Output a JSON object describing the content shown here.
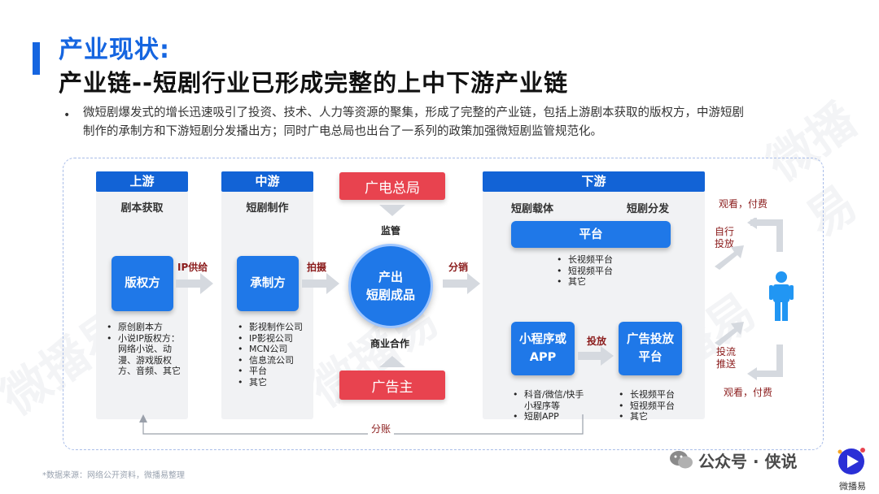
{
  "header": {
    "title_line1": "产业现状:",
    "title_line2": "产业链--短剧行业已形成完整的上中下游产业链"
  },
  "intro": {
    "text": "微短剧爆发式的增长迅速吸引了投资、技术、人力等资源的聚集，形成了完整的产业链，包括上游剧本获取的版权方，中游短剧制作的承制方和下游短剧分发播出方；同时广电总局也出台了一系列的政策加强微短剧监管规范化。"
  },
  "upstream": {
    "header": "上游",
    "subtitle": "剧本获取",
    "box": "版权方",
    "items": [
      "原创剧本方",
      "小说IP版权方：网络小说、动漫、游戏版权方、音频、其它"
    ]
  },
  "midstream": {
    "header": "中游",
    "subtitle": "短剧制作",
    "box": "承制方",
    "items": [
      "影视制作公司",
      "IP影视公司",
      "MCN公司",
      "信息流公司",
      "平台",
      "其它"
    ]
  },
  "center": {
    "regulator": "广电总局",
    "regulate_label": "监管",
    "circle_line1": "产出",
    "circle_line2": "短剧成品",
    "coop_label": "商业合作",
    "advertiser": "广告主"
  },
  "downstream": {
    "header": "下游",
    "sub_left": "短剧载体",
    "sub_right": "短剧分发",
    "platform": "平台",
    "platform_items": [
      "长视频平台",
      "短视频平台",
      "其它"
    ],
    "miniapp_line1": "小程序或",
    "miniapp_line2": "APP",
    "miniapp_items": [
      "科音/微信/快手小程序等",
      "短剧APP"
    ],
    "ad_line1": "广告投放",
    "ad_line2": "平台",
    "ad_items": [
      "长视频平台",
      "短视频平台",
      "其它"
    ],
    "toufang_label": "投放"
  },
  "flow": {
    "ip_supply": "IP供给",
    "shoot": "拍摄",
    "distribute": "分销",
    "revenue_share": "分账",
    "self_launch": "自行投放",
    "ad_push": "投流推送",
    "watch_pay_top": "观看，付费",
    "watch_pay_bottom": "观看，付费"
  },
  "footer": {
    "source_note": "*数据来源：网络公开资料，微播易整理",
    "wechat_label": "公众号 · 侠说",
    "logo_label": "微播易"
  },
  "watermark": {
    "text": "微播易"
  },
  "colors": {
    "brand_blue": "#1565e0",
    "box_blue": "#1f78e8",
    "header_blue": "#1263d6",
    "red": "#e8434f",
    "person_blue": "#2196f3"
  }
}
